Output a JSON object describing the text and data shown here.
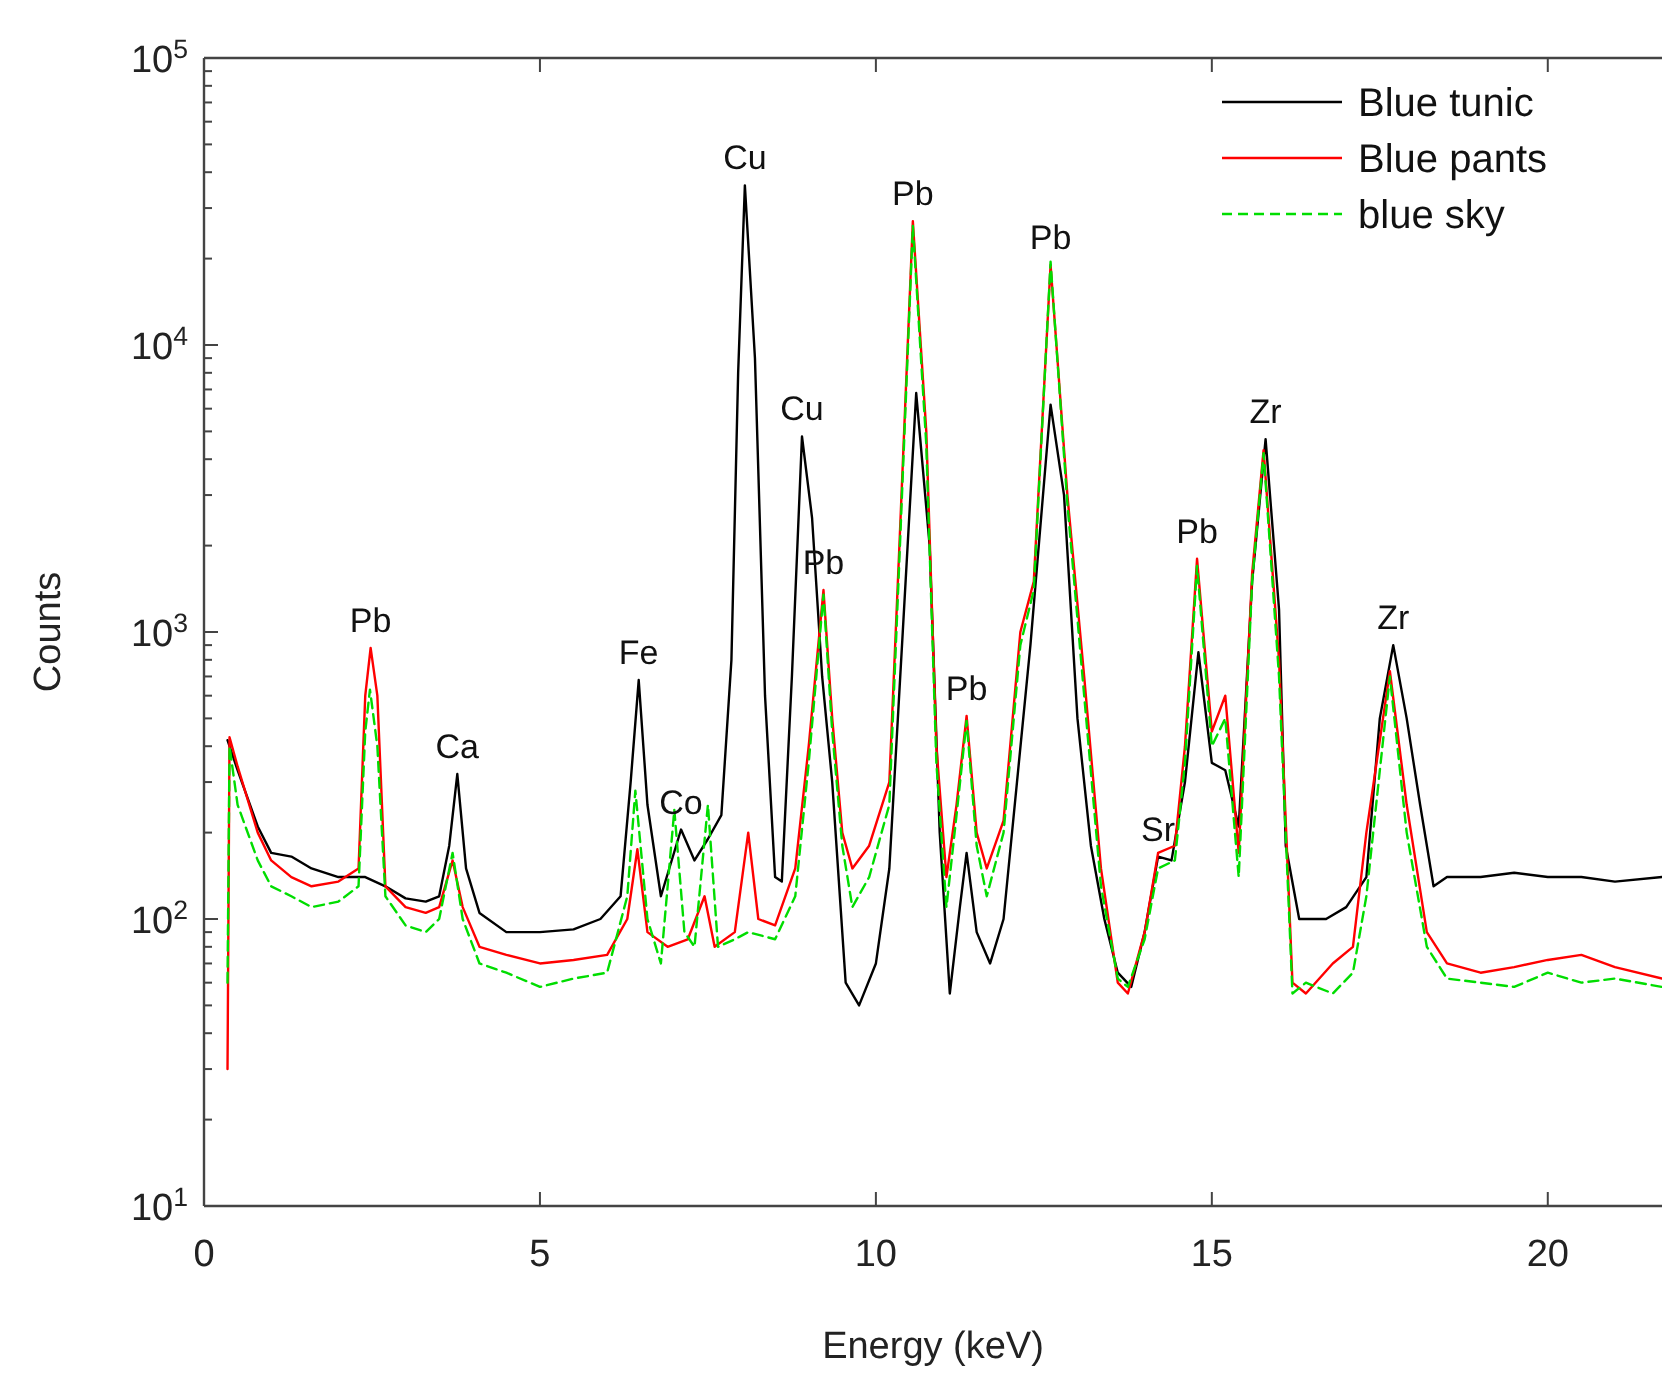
{
  "chart_data": {
    "type": "line",
    "xlabel": "Energy (keV)",
    "ylabel": "Counts",
    "log": "y",
    "grid": false,
    "legend": "top right",
    "xlim": [
      0,
      21.7
    ],
    "ylim": [
      10,
      100000
    ],
    "xticks": [
      0,
      5,
      10,
      15,
      20
    ],
    "yticks": [
      {
        "value": 10,
        "label": "10$^{1}$"
      },
      {
        "value": 20,
        "label": null
      },
      {
        "value": 30,
        "label": null
      },
      {
        "value": 40,
        "label": null
      },
      {
        "value": 50,
        "label": null
      },
      {
        "value": 60,
        "label": null
      },
      {
        "value": 70,
        "label": null
      },
      {
        "value": 80,
        "label": null
      },
      {
        "value": 90,
        "label": null
      },
      {
        "value": 100,
        "label": "10$^{2}$"
      },
      {
        "value": 200,
        "label": null
      },
      {
        "value": 300,
        "label": null
      },
      {
        "value": 400,
        "label": null
      },
      {
        "value": 500,
        "label": null
      },
      {
        "value": 600,
        "label": null
      },
      {
        "value": 700,
        "label": null
      },
      {
        "value": 800,
        "label": null
      },
      {
        "value": 900,
        "label": null
      },
      {
        "value": 1000,
        "label": "10$^{3}$"
      },
      {
        "value": 2000,
        "label": null
      },
      {
        "value": 3000,
        "label": null
      },
      {
        "value": 4000,
        "label": null
      },
      {
        "value": 5000,
        "label": null
      },
      {
        "value": 6000,
        "label": null
      },
      {
        "value": 7000,
        "label": null
      },
      {
        "value": 8000,
        "label": null
      },
      {
        "value": 9000,
        "label": null
      },
      {
        "value": 10000,
        "label": "10$^{4}$"
      },
      {
        "value": 20000,
        "label": null
      },
      {
        "value": 30000,
        "label": null
      },
      {
        "value": 40000,
        "label": null
      },
      {
        "value": 50000,
        "label": null
      },
      {
        "value": 60000,
        "label": null
      },
      {
        "value": 70000,
        "label": null
      },
      {
        "value": 80000,
        "label": null
      },
      {
        "value": 90000,
        "label": null
      },
      {
        "value": 100000,
        "label": "10$^{5}$"
      }
    ],
    "series": [
      {
        "name": "Blue tunic",
        "color": "#000000",
        "line_style": "solid",
        "x": [
          0.35,
          0.5,
          0.8,
          1.0,
          1.3,
          1.6,
          2.0,
          2.4,
          2.7,
          3.0,
          3.3,
          3.5,
          3.65,
          3.77,
          3.9,
          4.1,
          4.5,
          5.0,
          5.5,
          5.9,
          6.2,
          6.35,
          6.47,
          6.6,
          6.8,
          7.1,
          7.3,
          7.5,
          7.7,
          7.85,
          7.95,
          8.05,
          8.2,
          8.35,
          8.5,
          8.6,
          8.75,
          8.9,
          9.05,
          9.2,
          9.35,
          9.55,
          9.75,
          10.0,
          10.2,
          10.4,
          10.6,
          10.8,
          10.95,
          11.1,
          11.25,
          11.35,
          11.5,
          11.7,
          11.9,
          12.1,
          12.3,
          12.6,
          12.8,
          13.0,
          13.2,
          13.4,
          13.6,
          13.8,
          14.0,
          14.2,
          14.4,
          14.6,
          14.8,
          15.0,
          15.1,
          15.2,
          15.4,
          15.6,
          15.8,
          16.0,
          16.1,
          16.3,
          16.7,
          17.0,
          17.3,
          17.5,
          17.7,
          17.9,
          18.1,
          18.3,
          18.5,
          19.0,
          19.5,
          20.0,
          20.5,
          21.0,
          21.7
        ],
        "values": [
          420,
          330,
          210,
          170,
          165,
          150,
          140,
          140,
          130,
          118,
          115,
          120,
          180,
          320,
          150,
          105,
          90,
          90,
          92,
          100,
          120,
          300,
          680,
          250,
          120,
          205,
          160,
          190,
          230,
          800,
          8000,
          36000,
          9000,
          600,
          140,
          135,
          700,
          4800,
          2500,
          700,
          300,
          60,
          50,
          70,
          150,
          1000,
          6800,
          2000,
          200,
          55,
          110,
          170,
          90,
          70,
          100,
          300,
          900,
          6200,
          3000,
          500,
          180,
          100,
          65,
          58,
          90,
          165,
          160,
          300,
          850,
          350,
          340,
          330,
          210,
          1500,
          4700,
          1200,
          180,
          100,
          100,
          110,
          140,
          500,
          900,
          500,
          250,
          130,
          140,
          140,
          145,
          140,
          140,
          135,
          140
        ]
      },
      {
        "name": "Blue pants",
        "color": "#ff0000",
        "line_style": "solid",
        "x": [
          0.35,
          0.38,
          0.5,
          0.8,
          1.0,
          1.3,
          1.6,
          2.0,
          2.3,
          2.4,
          2.48,
          2.58,
          2.7,
          3.0,
          3.3,
          3.5,
          3.7,
          3.85,
          4.1,
          4.5,
          5.0,
          5.5,
          6.0,
          6.3,
          6.45,
          6.6,
          6.9,
          7.2,
          7.45,
          7.6,
          7.9,
          8.1,
          8.25,
          8.5,
          8.8,
          9.0,
          9.22,
          9.35,
          9.5,
          9.65,
          9.9,
          10.2,
          10.35,
          10.55,
          10.75,
          10.9,
          11.05,
          11.2,
          11.35,
          11.5,
          11.65,
          11.9,
          12.15,
          12.35,
          12.6,
          12.85,
          13.1,
          13.35,
          13.6,
          13.75,
          14.0,
          14.2,
          14.45,
          14.6,
          14.78,
          15.0,
          15.2,
          15.4,
          15.6,
          15.77,
          16.0,
          16.2,
          16.4,
          16.8,
          17.1,
          17.3,
          17.65,
          17.9,
          18.2,
          18.5,
          19.0,
          19.5,
          20.0,
          20.5,
          21.0,
          21.7
        ],
        "values": [
          30,
          430,
          340,
          200,
          160,
          140,
          130,
          135,
          150,
          600,
          880,
          600,
          130,
          110,
          105,
          110,
          160,
          110,
          80,
          75,
          70,
          72,
          75,
          100,
          175,
          90,
          80,
          85,
          120,
          80,
          90,
          200,
          100,
          95,
          150,
          400,
          1400,
          500,
          200,
          150,
          180,
          300,
          2000,
          27000,
          5000,
          400,
          140,
          250,
          510,
          200,
          150,
          220,
          1000,
          1500,
          19000,
          3000,
          700,
          150,
          60,
          55,
          90,
          170,
          180,
          400,
          1800,
          450,
          600,
          170,
          1600,
          4300,
          800,
          60,
          55,
          70,
          80,
          200,
          730,
          250,
          90,
          70,
          65,
          68,
          72,
          75,
          68,
          62
        ]
      },
      {
        "name": "blue sky",
        "color": "#00dd00",
        "line_style": "dashed",
        "x": [
          0.35,
          0.38,
          0.5,
          0.8,
          1.0,
          1.3,
          1.6,
          2.0,
          2.3,
          2.4,
          2.47,
          2.58,
          2.7,
          3.0,
          3.3,
          3.5,
          3.7,
          3.85,
          4.1,
          4.5,
          5.0,
          5.5,
          6.0,
          6.3,
          6.42,
          6.6,
          6.8,
          7.0,
          7.15,
          7.3,
          7.5,
          7.65,
          7.9,
          8.1,
          8.5,
          8.8,
          9.0,
          9.22,
          9.35,
          9.5,
          9.65,
          9.9,
          10.2,
          10.35,
          10.55,
          10.75,
          10.9,
          11.05,
          11.2,
          11.35,
          11.5,
          11.65,
          11.9,
          12.15,
          12.35,
          12.6,
          12.85,
          13.1,
          13.35,
          13.6,
          13.75,
          14.0,
          14.2,
          14.45,
          14.6,
          14.78,
          15.0,
          15.2,
          15.4,
          15.6,
          15.77,
          16.0,
          16.2,
          16.4,
          16.8,
          17.1,
          17.3,
          17.65,
          17.9,
          18.2,
          18.5,
          19.0,
          19.5,
          20.0,
          20.5,
          21.0,
          21.7
        ],
        "values": [
          60,
          400,
          250,
          160,
          130,
          120,
          110,
          115,
          130,
          450,
          630,
          400,
          120,
          95,
          90,
          100,
          170,
          100,
          70,
          65,
          58,
          62,
          65,
          120,
          280,
          100,
          70,
          240,
          90,
          80,
          250,
          80,
          85,
          90,
          85,
          120,
          350,
          1350,
          450,
          180,
          110,
          140,
          250,
          1800,
          26000,
          4500,
          350,
          110,
          230,
          490,
          180,
          120,
          200,
          900,
          1400,
          19500,
          2800,
          600,
          130,
          62,
          58,
          85,
          150,
          160,
          350,
          1700,
          400,
          500,
          140,
          1500,
          4200,
          700,
          55,
          60,
          55,
          65,
          120,
          700,
          200,
          80,
          62,
          60,
          58,
          65,
          60,
          62,
          58
        ]
      }
    ],
    "annotations": [
      {
        "text": "Pb",
        "x": 2.48,
        "y": 880
      },
      {
        "text": "Ca",
        "x": 3.77,
        "y": 320
      },
      {
        "text": "Fe",
        "x": 6.47,
        "y": 680
      },
      {
        "text": "Co",
        "x": 7.1,
        "y": 205
      },
      {
        "text": "Cu",
        "x": 8.05,
        "y": 36000
      },
      {
        "text": "Cu",
        "x": 8.9,
        "y": 4800
      },
      {
        "text": "Pb",
        "x": 9.22,
        "y": 1400
      },
      {
        "text": "Pb",
        "x": 10.55,
        "y": 27000
      },
      {
        "text": "Pb",
        "x": 11.35,
        "y": 510
      },
      {
        "text": "Pb",
        "x": 12.6,
        "y": 19000
      },
      {
        "text": "Sr",
        "x": 14.2,
        "y": 165
      },
      {
        "text": "Pb",
        "x": 14.78,
        "y": 1800
      },
      {
        "text": "Zr",
        "x": 15.8,
        "y": 4700
      },
      {
        "text": "Zr",
        "x": 17.7,
        "y": 900
      }
    ]
  }
}
